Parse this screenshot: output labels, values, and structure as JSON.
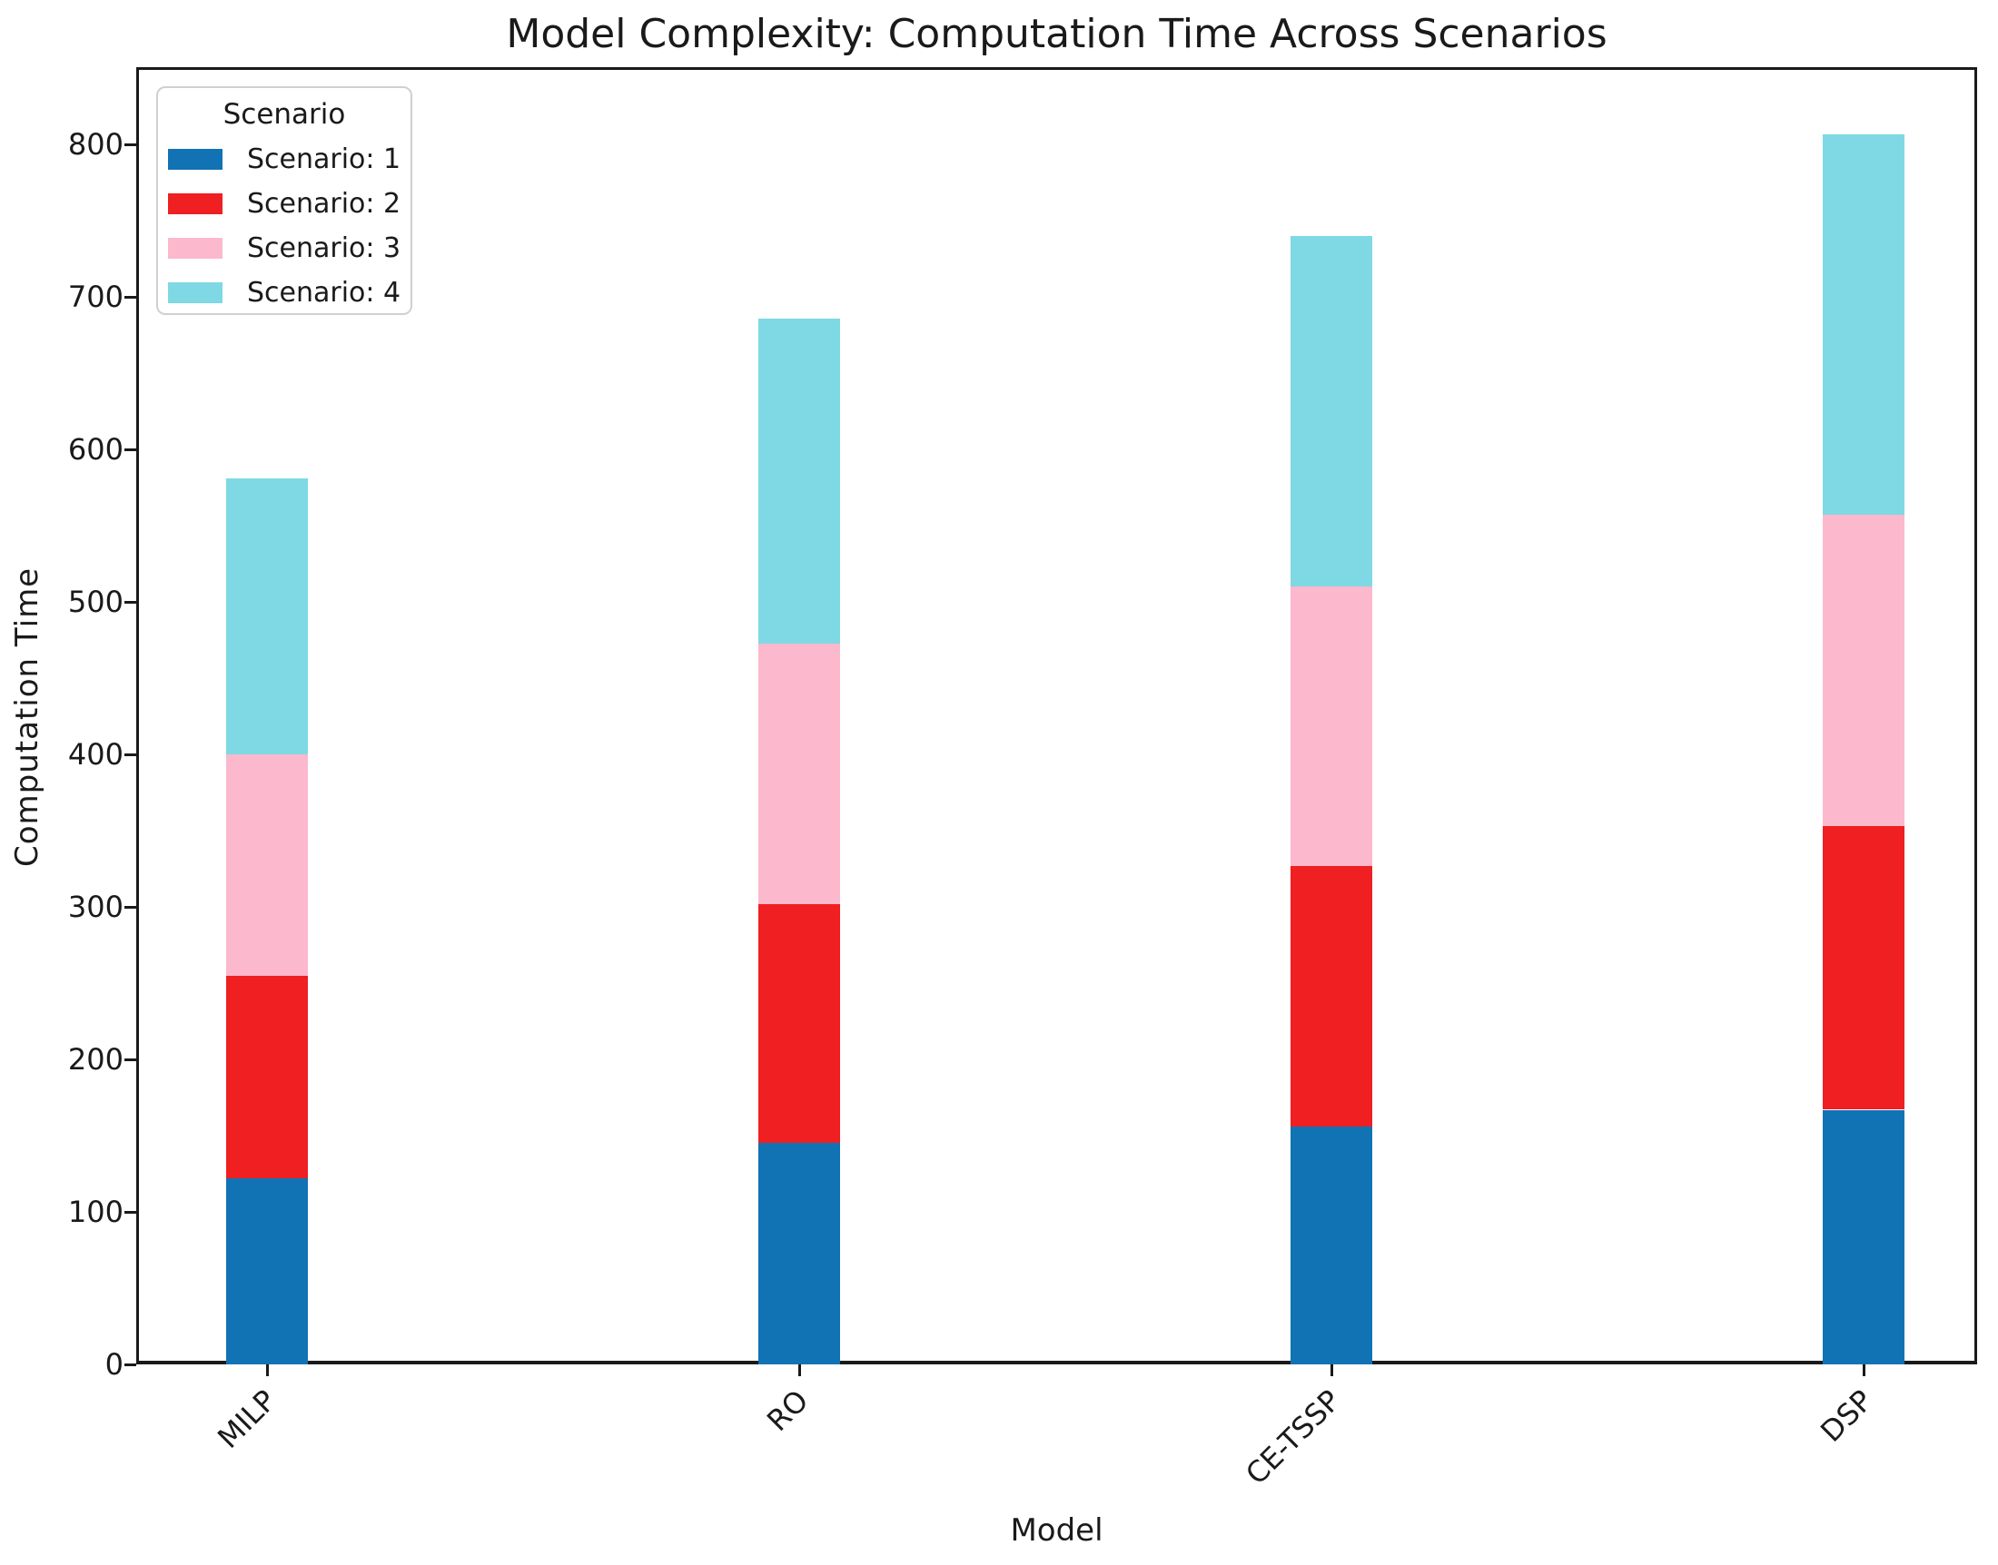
{
  "title": "Model Complexity: Computation Time Across Scenarios",
  "colors": {
    "text": "#1a1a1a",
    "spine": "#1a1a1a",
    "background": "#ffffff",
    "legend_border": "#d0d0d0"
  },
  "chart_data": {
    "type": "bar",
    "stacked": true,
    "title": "Model Complexity: Computation Time Across Scenarios",
    "xlabel": "Model",
    "ylabel": "Computation Time",
    "categories": [
      "MILP",
      "RO",
      "CE-TSSP",
      "DSP"
    ],
    "series": [
      {
        "name": "Scenario: 1",
        "color": "#1173b4",
        "values": [
          122,
          145,
          156,
          167
        ]
      },
      {
        "name": "Scenario: 2",
        "color": "#ef1f22",
        "values": [
          133,
          157,
          171,
          186
        ]
      },
      {
        "name": "Scenario: 3",
        "color": "#fcb8cd",
        "values": [
          145,
          171,
          183,
          204
        ]
      },
      {
        "name": "Scenario: 4",
        "color": "#7ed9e4",
        "values": [
          181,
          213,
          230,
          250
        ]
      }
    ],
    "stack_totals": [
      581,
      686,
      740,
      807
    ],
    "cumulative_boundaries": {
      "MILP": [
        122,
        255,
        400,
        581
      ],
      "RO": [
        145,
        302,
        473,
        686
      ],
      "CE-TSSP": [
        156,
        327,
        510,
        740
      ],
      "DSP": [
        167,
        353,
        557,
        807
      ]
    },
    "ylim": [
      0,
      849
    ],
    "yticks": [
      0,
      100,
      200,
      300,
      400,
      500,
      600,
      700,
      800
    ],
    "grid": false,
    "x_tick_rotation": 45,
    "legend": {
      "title": "Scenario",
      "position": "upper-left"
    }
  }
}
